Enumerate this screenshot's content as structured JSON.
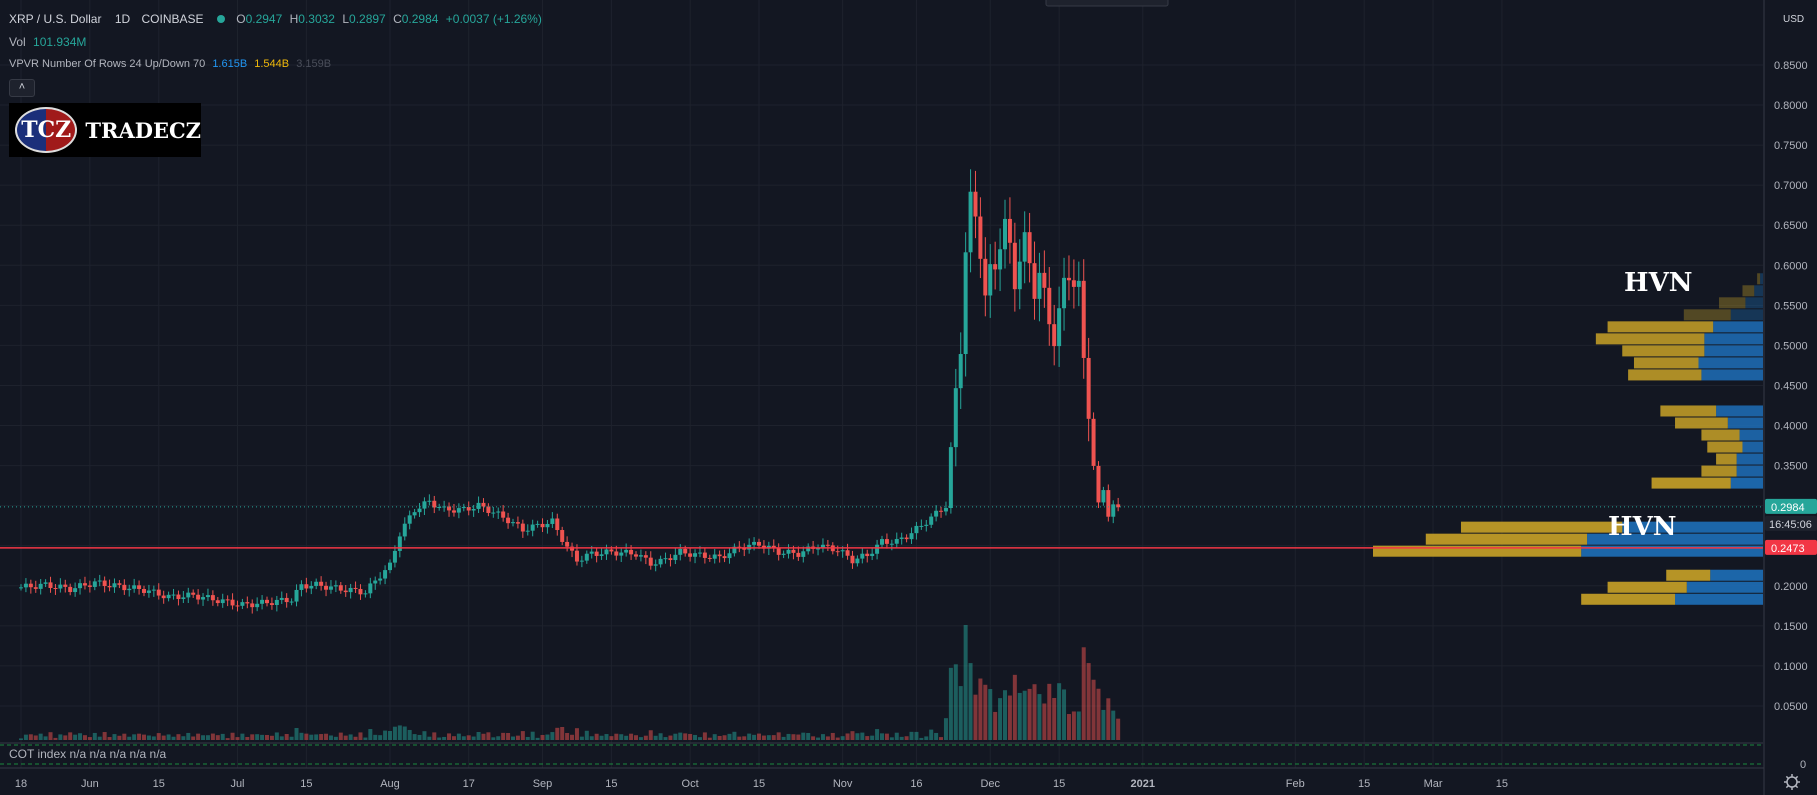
{
  "legend": {
    "symbol": "XRP / U.S. Dollar",
    "interval": "1D",
    "exchange": "COINBASE",
    "o_label": "O",
    "o_value": "0.2947",
    "h_label": "H",
    "h_value": "0.3032",
    "l_label": "L",
    "l_value": "0.2897",
    "c_label": "C",
    "c_value": "0.2984",
    "change": "+0.0037 (+1.26%)",
    "vol_label": "Vol",
    "vol_value": "101.934M",
    "vpvr_label": "VPVR Number Of Rows 24 Up/Down 70",
    "vpvr_up": "1.615B",
    "vpvr_down": "1.544B",
    "vpvr_total": "3.159B",
    "collapse_icon": "chevron-up-icon"
  },
  "logo": {
    "mark": "TCZ",
    "name": "TRADECZ"
  },
  "annotations": {
    "hvn_upper": "HVN",
    "hvn_lower": "HVN"
  },
  "cot": {
    "text": "COT index  n/a  n/a  n/a  n/a  n/a"
  },
  "settings_icon": "gear-icon",
  "colors": {
    "background": "#131722",
    "up": "#26a69a",
    "down": "#ef5350",
    "vp_up": "#1e6fb8",
    "vp_down": "#c9a227",
    "hline": "#f23645",
    "last_price": "#26a69a"
  },
  "chart_data": {
    "type": "candlestick",
    "currency": "USD",
    "y_axis": {
      "range": [
        0,
        0.95
      ],
      "ticks": [
        "0.0500",
        "0.1000",
        "0.1500",
        "0.2000",
        "0.2500",
        "0.3000",
        "0.3500",
        "0.4000",
        "0.4500",
        "0.5000",
        "0.5500",
        "0.6000",
        "0.6500",
        "0.7000",
        "0.7500",
        "0.8000",
        "0.8500"
      ],
      "tick_values": [
        0.05,
        0.1,
        0.15,
        0.2,
        0.25,
        0.3,
        0.35,
        0.4,
        0.45,
        0.5,
        0.55,
        0.6,
        0.65,
        0.7,
        0.75,
        0.8,
        0.85
      ],
      "bottom_label": "0"
    },
    "x_axis": {
      "labels": [
        "18",
        "Jun",
        "15",
        "Jul",
        "15",
        "Aug",
        "17",
        "Sep",
        "15",
        "Oct",
        "15",
        "Nov",
        "16",
        "Dec",
        "15",
        "2021",
        "Feb",
        "15",
        "Mar",
        "15"
      ],
      "label_days": [
        0,
        14,
        28,
        44,
        58,
        75,
        91,
        106,
        120,
        136,
        150,
        167,
        182,
        197,
        211,
        228,
        259,
        273,
        287,
        301
      ]
    },
    "last_price_label": "0.2984",
    "countdown_label": "16:45:06",
    "hline_label": "0.2473",
    "hline_value": 0.2473,
    "last_price": 0.2984,
    "price_path": [
      [
        0,
        0.198
      ],
      [
        5,
        0.201
      ],
      [
        10,
        0.196
      ],
      [
        15,
        0.204
      ],
      [
        20,
        0.199
      ],
      [
        25,
        0.195
      ],
      [
        30,
        0.186
      ],
      [
        35,
        0.188
      ],
      [
        40,
        0.182
      ],
      [
        45,
        0.176
      ],
      [
        50,
        0.179
      ],
      [
        55,
        0.183
      ],
      [
        57,
        0.2
      ],
      [
        60,
        0.201
      ],
      [
        65,
        0.196
      ],
      [
        70,
        0.192
      ],
      [
        73,
        0.213
      ],
      [
        75,
        0.225
      ],
      [
        77,
        0.265
      ],
      [
        80,
        0.295
      ],
      [
        83,
        0.305
      ],
      [
        86,
        0.295
      ],
      [
        90,
        0.295
      ],
      [
        93,
        0.3
      ],
      [
        96,
        0.292
      ],
      [
        99,
        0.282
      ],
      [
        102,
        0.27
      ],
      [
        105,
        0.275
      ],
      [
        108,
        0.28
      ],
      [
        111,
        0.248
      ],
      [
        113,
        0.232
      ],
      [
        116,
        0.24
      ],
      [
        120,
        0.242
      ],
      [
        125,
        0.24
      ],
      [
        128,
        0.228
      ],
      [
        130,
        0.23
      ],
      [
        134,
        0.242
      ],
      [
        138,
        0.238
      ],
      [
        142,
        0.235
      ],
      [
        146,
        0.248
      ],
      [
        150,
        0.252
      ],
      [
        154,
        0.242
      ],
      [
        158,
        0.24
      ],
      [
        162,
        0.25
      ],
      [
        166,
        0.245
      ],
      [
        169,
        0.232
      ],
      [
        172,
        0.238
      ],
      [
        175,
        0.255
      ],
      [
        178,
        0.255
      ],
      [
        180,
        0.262
      ],
      [
        183,
        0.275
      ],
      [
        186,
        0.29
      ],
      [
        188,
        0.3
      ],
      [
        190,
        0.44
      ],
      [
        191,
        0.5
      ],
      [
        192,
        0.62
      ],
      [
        193,
        0.68
      ],
      [
        194,
        0.66
      ],
      [
        195,
        0.62
      ],
      [
        196,
        0.56
      ],
      [
        197,
        0.59
      ],
      [
        198,
        0.6
      ],
      [
        199,
        0.63
      ],
      [
        200,
        0.65
      ],
      [
        201,
        0.62
      ],
      [
        202,
        0.58
      ],
      [
        203,
        0.61
      ],
      [
        204,
        0.63
      ],
      [
        205,
        0.6
      ],
      [
        206,
        0.57
      ],
      [
        207,
        0.59
      ],
      [
        208,
        0.56
      ],
      [
        209,
        0.53
      ],
      [
        210,
        0.51
      ],
      [
        211,
        0.54
      ],
      [
        212,
        0.575
      ],
      [
        213,
        0.59
      ],
      [
        214,
        0.58
      ],
      [
        215,
        0.57
      ],
      [
        216,
        0.48
      ],
      [
        217,
        0.42
      ],
      [
        218,
        0.35
      ],
      [
        219,
        0.3
      ],
      [
        220,
        0.32
      ],
      [
        221,
        0.29
      ],
      [
        222,
        0.3
      ],
      [
        223,
        0.298
      ]
    ],
    "volume_profile": [
      {
        "low": 0.175,
        "high": 0.19,
        "up": 1.5,
        "down": 1.6
      },
      {
        "low": 0.19,
        "high": 0.205,
        "up": 1.3,
        "down": 1.35
      },
      {
        "low": 0.205,
        "high": 0.22,
        "up": 0.9,
        "down": 0.75
      },
      {
        "low": 0.235,
        "high": 0.25,
        "up": 3.1,
        "down": 3.55
      },
      {
        "low": 0.25,
        "high": 0.265,
        "up": 3.0,
        "down": 2.75
      },
      {
        "low": 0.265,
        "high": 0.28,
        "up": 2.4,
        "down": 2.75
      },
      {
        "low": 0.32,
        "high": 0.335,
        "up": 0.55,
        "down": 1.35
      },
      {
        "low": 0.335,
        "high": 0.35,
        "up": 0.45,
        "down": 0.6
      },
      {
        "low": 0.35,
        "high": 0.365,
        "up": 0.45,
        "down": 0.35
      },
      {
        "low": 0.365,
        "high": 0.38,
        "up": 0.35,
        "down": 0.6
      },
      {
        "low": 0.38,
        "high": 0.395,
        "up": 0.4,
        "down": 0.65
      },
      {
        "low": 0.395,
        "high": 0.41,
        "up": 0.6,
        "down": 0.9
      },
      {
        "low": 0.41,
        "high": 0.425,
        "up": 0.8,
        "down": 0.95
      },
      {
        "low": 0.455,
        "high": 0.47,
        "up": 1.05,
        "down": 1.25
      },
      {
        "low": 0.47,
        "high": 0.485,
        "up": 1.1,
        "down": 1.1
      },
      {
        "low": 0.485,
        "high": 0.5,
        "up": 1.0,
        "down": 1.4
      },
      {
        "low": 0.5,
        "high": 0.515,
        "up": 1.0,
        "down": 1.85
      },
      {
        "low": 0.515,
        "high": 0.53,
        "up": 0.85,
        "down": 1.8
      },
      {
        "low": 0.53,
        "high": 0.545,
        "up": 0.55,
        "down": 0.8
      },
      {
        "low": 0.545,
        "high": 0.56,
        "up": 0.3,
        "down": 0.45
      },
      {
        "low": 0.56,
        "high": 0.575,
        "up": 0.15,
        "down": 0.2
      },
      {
        "low": 0.575,
        "high": 0.59,
        "up": 0.05,
        "down": 0.05
      }
    ]
  }
}
